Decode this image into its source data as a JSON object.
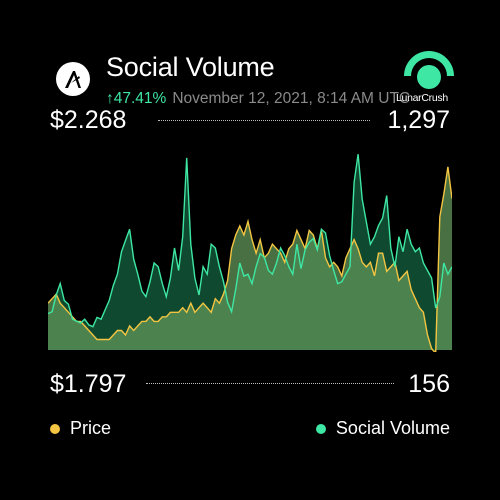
{
  "header": {
    "title": "Social Volume",
    "change": "↑47.41%",
    "timestamp": "November 12, 2021, 8:14 AM UTC",
    "logo_icon": "algorand-icon",
    "brand_icon": "lunarcrush-icon",
    "brand_label": "LunarCrush"
  },
  "colors": {
    "price": "#f4c542",
    "social": "#3ee7a3",
    "change": "#3ee7a3",
    "background": "#000000"
  },
  "chart_data": {
    "type": "area",
    "title": "Social Volume",
    "x_points": 100,
    "axes": {
      "price": {
        "max_label": "$2.268",
        "min_label": "$1.797",
        "range": [
          1.797,
          2.268
        ]
      },
      "social": {
        "max_label": "1,297",
        "min_label": "156",
        "range": [
          156,
          1297
        ]
      }
    },
    "series": [
      {
        "name": "Price",
        "values": [
          1.9,
          1.91,
          1.92,
          1.9,
          1.89,
          1.88,
          1.87,
          1.86,
          1.86,
          1.85,
          1.84,
          1.83,
          1.82,
          1.82,
          1.82,
          1.82,
          1.83,
          1.84,
          1.84,
          1.83,
          1.85,
          1.84,
          1.85,
          1.86,
          1.86,
          1.87,
          1.86,
          1.86,
          1.87,
          1.87,
          1.88,
          1.88,
          1.88,
          1.89,
          1.88,
          1.9,
          1.88,
          1.89,
          1.9,
          1.89,
          1.88,
          1.91,
          1.9,
          1.92,
          1.95,
          2.02,
          2.05,
          2.07,
          2.05,
          2.08,
          2.04,
          2.01,
          2.04,
          2.0,
          2.01,
          2.03,
          2.02,
          2.01,
          1.99,
          2.02,
          2.03,
          2.06,
          2.04,
          2.02,
          2.06,
          2.05,
          2.02,
          2.06,
          2.0,
          1.98,
          1.99,
          1.98,
          1.96,
          2.0,
          2.02,
          2.04,
          2.02,
          1.99,
          1.98,
          1.99,
          1.96,
          2.01,
          2.01,
          1.97,
          1.98,
          1.99,
          1.95,
          1.96,
          1.97,
          1.93,
          1.91,
          1.89,
          1.88,
          1.83,
          1.8,
          1.79,
          2.09,
          2.14,
          2.2,
          2.13
        ]
      },
      {
        "name": "Social Volume",
        "values": [
          350,
          360,
          450,
          510,
          420,
          400,
          320,
          310,
          300,
          320,
          290,
          280,
          330,
          320,
          370,
          420,
          500,
          560,
          680,
          740,
          800,
          640,
          560,
          470,
          440,
          520,
          620,
          600,
          510,
          440,
          540,
          700,
          580,
          760,
          1180,
          720,
          540,
          450,
          600,
          560,
          720,
          700,
          600,
          520,
          410,
          360,
          480,
          620,
          550,
          560,
          510,
          600,
          670,
          650,
          580,
          560,
          620,
          700,
          660,
          600,
          560,
          720,
          590,
          690,
          730,
          750,
          690,
          800,
          780,
          660,
          580,
          510,
          520,
          560,
          600,
          1050,
          1200,
          960,
          840,
          720,
          760,
          820,
          860,
          980,
          700,
          600,
          760,
          680,
          800,
          720,
          680,
          700,
          620,
          580,
          540,
          380,
          440,
          620,
          560,
          600
        ]
      }
    ],
    "legend": [
      "Price",
      "Social Volume"
    ]
  }
}
